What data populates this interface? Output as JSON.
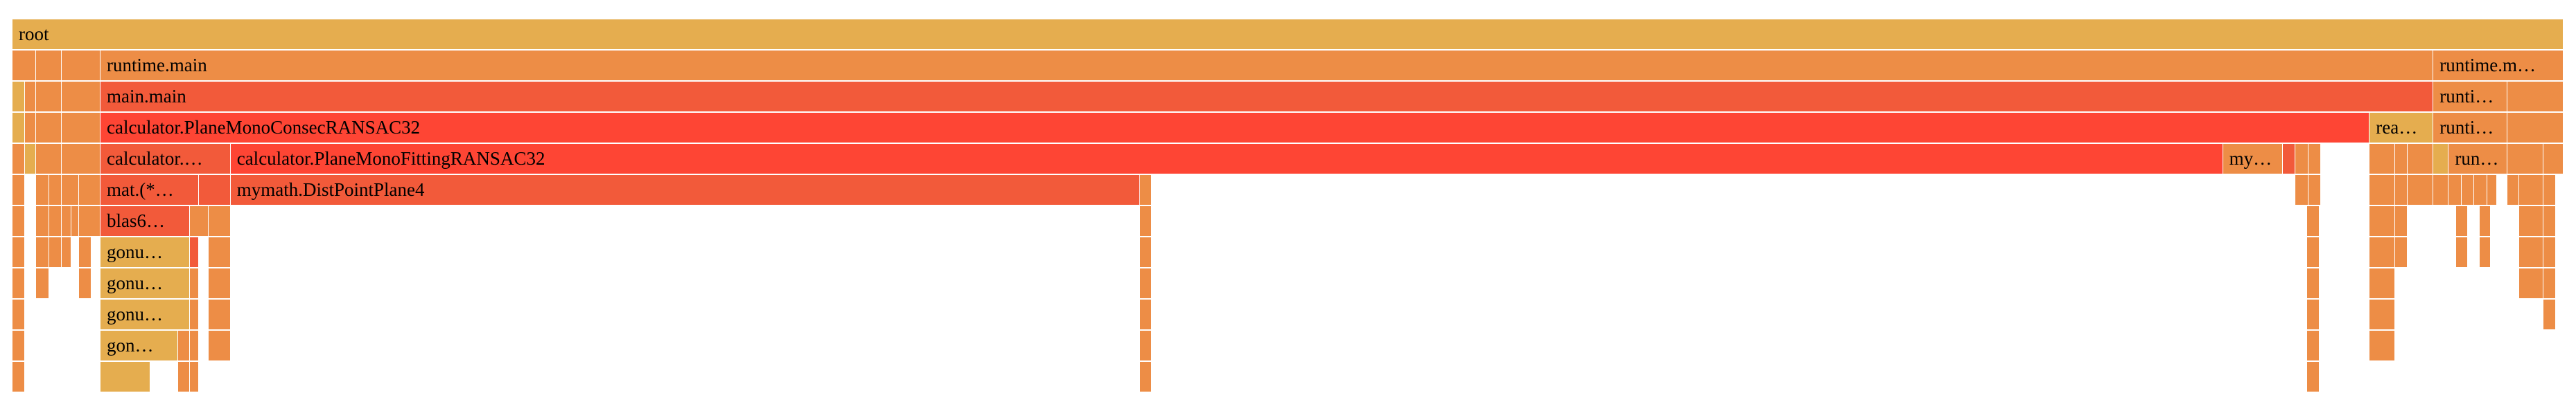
{
  "colors": {
    "yellow": "#e5ad4f",
    "orange": "#ed8d46",
    "red": "#fe4534",
    "dark_red": "#f25a3a"
  },
  "frames": [
    {
      "label": "root",
      "color": "yellow",
      "depth": 0,
      "start": 0.0,
      "end": 1.0
    },
    {
      "label": "",
      "color": "orange",
      "depth": 1,
      "start": 0.0,
      "end": 0.0093
    },
    {
      "label": "",
      "color": "orange",
      "depth": 1,
      "start": 0.0093,
      "end": 0.0193
    },
    {
      "label": "",
      "color": "orange",
      "depth": 1,
      "start": 0.0193,
      "end": 0.0345
    },
    {
      "label": "runtime.main",
      "color": "orange",
      "depth": 1,
      "start": 0.0345,
      "end": 0.949
    },
    {
      "label": "runtime.m…",
      "color": "orange",
      "depth": 1,
      "start": 0.949,
      "end": 1.0
    },
    {
      "label": "",
      "color": "yellow",
      "depth": 2,
      "start": 0.0,
      "end": 0.005
    },
    {
      "label": "",
      "color": "orange",
      "depth": 2,
      "start": 0.005,
      "end": 0.0093
    },
    {
      "label": "",
      "color": "orange",
      "depth": 2,
      "start": 0.0093,
      "end": 0.0193
    },
    {
      "label": "",
      "color": "orange",
      "depth": 2,
      "start": 0.0193,
      "end": 0.0345
    },
    {
      "label": "main.main",
      "color": "dark_red",
      "depth": 2,
      "start": 0.0345,
      "end": 0.949
    },
    {
      "label": "runti…",
      "color": "orange",
      "depth": 2,
      "start": 0.949,
      "end": 0.978
    },
    {
      "label": "",
      "color": "orange",
      "depth": 2,
      "start": 0.978,
      "end": 1.0
    },
    {
      "label": "",
      "color": "yellow",
      "depth": 3,
      "start": 0.0,
      "end": 0.005
    },
    {
      "label": "",
      "color": "orange",
      "depth": 3,
      "start": 0.005,
      "end": 0.0093
    },
    {
      "label": "",
      "color": "orange",
      "depth": 3,
      "start": 0.0093,
      "end": 0.0193
    },
    {
      "label": "",
      "color": "orange",
      "depth": 3,
      "start": 0.0193,
      "end": 0.0345
    },
    {
      "label": "calculator.PlaneMonoConsecRANSAC32",
      "color": "red",
      "depth": 3,
      "start": 0.0345,
      "end": 0.924
    },
    {
      "label": "rea…",
      "color": "yellow",
      "depth": 3,
      "start": 0.924,
      "end": 0.949
    },
    {
      "label": "runti…",
      "color": "orange",
      "depth": 3,
      "start": 0.949,
      "end": 0.978
    },
    {
      "label": "",
      "color": "orange",
      "depth": 3,
      "start": 0.978,
      "end": 1.0
    },
    {
      "label": "",
      "color": "orange",
      "depth": 4,
      "start": 0.0,
      "end": 0.005
    },
    {
      "label": "",
      "color": "yellow",
      "depth": 4,
      "start": 0.005,
      "end": 0.0093
    },
    {
      "label": "",
      "color": "orange",
      "depth": 4,
      "start": 0.0093,
      "end": 0.0193
    },
    {
      "label": "",
      "color": "orange",
      "depth": 4,
      "start": 0.0193,
      "end": 0.0345
    },
    {
      "label": "calculator.…",
      "color": "dark_red",
      "depth": 4,
      "start": 0.0345,
      "end": 0.0855
    },
    {
      "label": "calculator.PlaneMonoFittingRANSAC32",
      "color": "red",
      "depth": 4,
      "start": 0.0855,
      "end": 0.8665
    },
    {
      "label": "my…",
      "color": "orange",
      "depth": 4,
      "start": 0.8665,
      "end": 0.89
    },
    {
      "label": "",
      "color": "dark_red",
      "depth": 4,
      "start": 0.89,
      "end": 0.895
    },
    {
      "label": "",
      "color": "orange",
      "depth": 4,
      "start": 0.895,
      "end": 0.9
    },
    {
      "label": "",
      "color": "orange",
      "depth": 4,
      "start": 0.9,
      "end": 0.905
    },
    {
      "label": "",
      "color": "orange",
      "depth": 4,
      "start": 0.924,
      "end": 0.934
    },
    {
      "label": "",
      "color": "orange",
      "depth": 4,
      "start": 0.934,
      "end": 0.939
    },
    {
      "label": "",
      "color": "orange",
      "depth": 4,
      "start": 0.939,
      "end": 0.949
    },
    {
      "label": "",
      "color": "yellow",
      "depth": 4,
      "start": 0.949,
      "end": 0.955
    },
    {
      "label": "run…",
      "color": "orange",
      "depth": 4,
      "start": 0.955,
      "end": 0.978
    },
    {
      "label": "",
      "color": "orange",
      "depth": 4,
      "start": 0.978,
      "end": 0.992
    },
    {
      "label": "",
      "color": "orange",
      "depth": 4,
      "start": 0.992,
      "end": 1.0
    },
    {
      "label": "",
      "color": "orange",
      "depth": 5,
      "start": 0.0,
      "end": 0.005
    },
    {
      "label": "",
      "color": "orange",
      "depth": 5,
      "start": 0.0093,
      "end": 0.0143
    },
    {
      "label": "",
      "color": "orange",
      "depth": 5,
      "start": 0.0143,
      "end": 0.0193
    },
    {
      "label": "",
      "color": "orange",
      "depth": 5,
      "start": 0.0193,
      "end": 0.026
    },
    {
      "label": "",
      "color": "orange",
      "depth": 5,
      "start": 0.026,
      "end": 0.0345
    },
    {
      "label": "mat.(*…",
      "color": "dark_red",
      "depth": 5,
      "start": 0.0345,
      "end": 0.073
    },
    {
      "label": "",
      "color": "dark_red",
      "depth": 5,
      "start": 0.073,
      "end": 0.0855
    },
    {
      "label": "mymath.DistPointPlane4",
      "color": "dark_red",
      "depth": 5,
      "start": 0.0855,
      "end": 0.442
    },
    {
      "label": "",
      "color": "orange",
      "depth": 5,
      "start": 0.442,
      "end": 0.4465
    },
    {
      "label": "",
      "color": "orange",
      "depth": 5,
      "start": 0.895,
      "end": 0.9
    },
    {
      "label": "",
      "color": "orange",
      "depth": 5,
      "start": 0.9,
      "end": 0.905
    },
    {
      "label": "",
      "color": "orange",
      "depth": 5,
      "start": 0.924,
      "end": 0.934
    },
    {
      "label": "",
      "color": "orange",
      "depth": 5,
      "start": 0.934,
      "end": 0.939
    },
    {
      "label": "",
      "color": "orange",
      "depth": 5,
      "start": 0.939,
      "end": 0.949
    },
    {
      "label": "",
      "color": "orange",
      "depth": 5,
      "start": 0.949,
      "end": 0.955
    },
    {
      "label": "",
      "color": "orange",
      "depth": 5,
      "start": 0.955,
      "end": 0.96
    },
    {
      "label": "",
      "color": "orange",
      "depth": 5,
      "start": 0.96,
      "end": 0.965
    },
    {
      "label": "",
      "color": "orange",
      "depth": 5,
      "start": 0.965,
      "end": 0.97
    },
    {
      "label": "",
      "color": "orange",
      "depth": 5,
      "start": 0.97,
      "end": 0.974
    },
    {
      "label": "",
      "color": "orange",
      "depth": 5,
      "start": 0.978,
      "end": 0.9825
    },
    {
      "label": "",
      "color": "orange",
      "depth": 5,
      "start": 0.9825,
      "end": 0.992
    },
    {
      "label": "",
      "color": "orange",
      "depth": 5,
      "start": 0.992,
      "end": 0.997
    },
    {
      "label": "",
      "color": "orange",
      "depth": 6,
      "start": 0.0,
      "end": 0.005
    },
    {
      "label": "",
      "color": "orange",
      "depth": 6,
      "start": 0.0093,
      "end": 0.0143
    },
    {
      "label": "",
      "color": "orange",
      "depth": 6,
      "start": 0.0143,
      "end": 0.0193
    },
    {
      "label": "",
      "color": "orange",
      "depth": 6,
      "start": 0.0193,
      "end": 0.023
    },
    {
      "label": "",
      "color": "orange",
      "depth": 6,
      "start": 0.023,
      "end": 0.026
    },
    {
      "label": "",
      "color": "orange",
      "depth": 6,
      "start": 0.026,
      "end": 0.0345
    },
    {
      "label": "blas6…",
      "color": "dark_red",
      "depth": 6,
      "start": 0.0345,
      "end": 0.0695
    },
    {
      "label": "",
      "color": "orange",
      "depth": 6,
      "start": 0.0695,
      "end": 0.077
    },
    {
      "label": "",
      "color": "orange",
      "depth": 6,
      "start": 0.077,
      "end": 0.0855
    },
    {
      "label": "",
      "color": "orange",
      "depth": 6,
      "start": 0.442,
      "end": 0.4465
    },
    {
      "label": "",
      "color": "orange",
      "depth": 6,
      "start": 0.8995,
      "end": 0.9045
    },
    {
      "label": "",
      "color": "orange",
      "depth": 6,
      "start": 0.924,
      "end": 0.934
    },
    {
      "label": "",
      "color": "orange",
      "depth": 6,
      "start": 0.934,
      "end": 0.939
    },
    {
      "label": "",
      "color": "orange",
      "depth": 6,
      "start": 0.958,
      "end": 0.9625
    },
    {
      "label": "",
      "color": "orange",
      "depth": 6,
      "start": 0.967,
      "end": 0.9715
    },
    {
      "label": "",
      "color": "orange",
      "depth": 6,
      "start": 0.9825,
      "end": 0.992
    },
    {
      "label": "",
      "color": "orange",
      "depth": 6,
      "start": 0.992,
      "end": 0.997
    },
    {
      "label": "",
      "color": "orange",
      "depth": 7,
      "start": 0.0,
      "end": 0.005
    },
    {
      "label": "",
      "color": "orange",
      "depth": 7,
      "start": 0.0093,
      "end": 0.0143
    },
    {
      "label": "",
      "color": "orange",
      "depth": 7,
      "start": 0.0143,
      "end": 0.0193
    },
    {
      "label": "",
      "color": "orange",
      "depth": 7,
      "start": 0.0193,
      "end": 0.023
    },
    {
      "label": "",
      "color": "orange",
      "depth": 7,
      "start": 0.026,
      "end": 0.031
    },
    {
      "label": "gonu…",
      "color": "yellow",
      "depth": 7,
      "start": 0.0345,
      "end": 0.0695
    },
    {
      "label": "",
      "color": "dark_red",
      "depth": 7,
      "start": 0.0695,
      "end": 0.073
    },
    {
      "label": "",
      "color": "orange",
      "depth": 7,
      "start": 0.077,
      "end": 0.0855
    },
    {
      "label": "",
      "color": "orange",
      "depth": 7,
      "start": 0.442,
      "end": 0.4465
    },
    {
      "label": "",
      "color": "orange",
      "depth": 7,
      "start": 0.8995,
      "end": 0.9045
    },
    {
      "label": "",
      "color": "orange",
      "depth": 7,
      "start": 0.924,
      "end": 0.934
    },
    {
      "label": "",
      "color": "orange",
      "depth": 7,
      "start": 0.934,
      "end": 0.939
    },
    {
      "label": "",
      "color": "orange",
      "depth": 7,
      "start": 0.958,
      "end": 0.9625
    },
    {
      "label": "",
      "color": "orange",
      "depth": 7,
      "start": 0.967,
      "end": 0.9715
    },
    {
      "label": "",
      "color": "orange",
      "depth": 7,
      "start": 0.9825,
      "end": 0.992
    },
    {
      "label": "",
      "color": "orange",
      "depth": 7,
      "start": 0.992,
      "end": 0.997
    },
    {
      "label": "",
      "color": "orange",
      "depth": 8,
      "start": 0.0,
      "end": 0.005
    },
    {
      "label": "",
      "color": "orange",
      "depth": 8,
      "start": 0.0093,
      "end": 0.0143
    },
    {
      "label": "",
      "color": "orange",
      "depth": 8,
      "start": 0.026,
      "end": 0.031
    },
    {
      "label": "gonu…",
      "color": "yellow",
      "depth": 8,
      "start": 0.0345,
      "end": 0.0695
    },
    {
      "label": "",
      "color": "orange",
      "depth": 8,
      "start": 0.0695,
      "end": 0.073
    },
    {
      "label": "",
      "color": "orange",
      "depth": 8,
      "start": 0.077,
      "end": 0.0855
    },
    {
      "label": "",
      "color": "orange",
      "depth": 8,
      "start": 0.442,
      "end": 0.4465
    },
    {
      "label": "",
      "color": "orange",
      "depth": 8,
      "start": 0.8995,
      "end": 0.9045
    },
    {
      "label": "",
      "color": "orange",
      "depth": 8,
      "start": 0.924,
      "end": 0.934
    },
    {
      "label": "",
      "color": "orange",
      "depth": 8,
      "start": 0.9825,
      "end": 0.992
    },
    {
      "label": "",
      "color": "orange",
      "depth": 8,
      "start": 0.992,
      "end": 0.997
    },
    {
      "label": "",
      "color": "orange",
      "depth": 9,
      "start": 0.0,
      "end": 0.005
    },
    {
      "label": "gonu…",
      "color": "yellow",
      "depth": 9,
      "start": 0.0345,
      "end": 0.0695
    },
    {
      "label": "",
      "color": "orange",
      "depth": 9,
      "start": 0.0695,
      "end": 0.073
    },
    {
      "label": "",
      "color": "orange",
      "depth": 9,
      "start": 0.077,
      "end": 0.0855
    },
    {
      "label": "",
      "color": "orange",
      "depth": 9,
      "start": 0.442,
      "end": 0.4465
    },
    {
      "label": "",
      "color": "orange",
      "depth": 9,
      "start": 0.8995,
      "end": 0.9045
    },
    {
      "label": "",
      "color": "orange",
      "depth": 9,
      "start": 0.924,
      "end": 0.934
    },
    {
      "label": "",
      "color": "orange",
      "depth": 9,
      "start": 0.992,
      "end": 0.997
    },
    {
      "label": "",
      "color": "orange",
      "depth": 10,
      "start": 0.0,
      "end": 0.005
    },
    {
      "label": "gon…",
      "color": "yellow",
      "depth": 10,
      "start": 0.0345,
      "end": 0.065
    },
    {
      "label": "",
      "color": "orange",
      "depth": 10,
      "start": 0.065,
      "end": 0.0695
    },
    {
      "label": "",
      "color": "orange",
      "depth": 10,
      "start": 0.0695,
      "end": 0.073
    },
    {
      "label": "",
      "color": "orange",
      "depth": 10,
      "start": 0.077,
      "end": 0.0855
    },
    {
      "label": "",
      "color": "orange",
      "depth": 10,
      "start": 0.442,
      "end": 0.4465
    },
    {
      "label": "",
      "color": "orange",
      "depth": 10,
      "start": 0.8995,
      "end": 0.9045
    },
    {
      "label": "",
      "color": "orange",
      "depth": 10,
      "start": 0.924,
      "end": 0.934
    },
    {
      "label": "",
      "color": "orange",
      "depth": 11,
      "start": 0.0,
      "end": 0.005
    },
    {
      "label": "",
      "color": "yellow",
      "depth": 11,
      "start": 0.0345,
      "end": 0.054
    },
    {
      "label": "",
      "color": "orange",
      "depth": 11,
      "start": 0.065,
      "end": 0.0695
    },
    {
      "label": "",
      "color": "orange",
      "depth": 11,
      "start": 0.0695,
      "end": 0.073
    },
    {
      "label": "",
      "color": "orange",
      "depth": 11,
      "start": 0.442,
      "end": 0.4465
    },
    {
      "label": "",
      "color": "orange",
      "depth": 11,
      "start": 0.8995,
      "end": 0.9045
    }
  ]
}
